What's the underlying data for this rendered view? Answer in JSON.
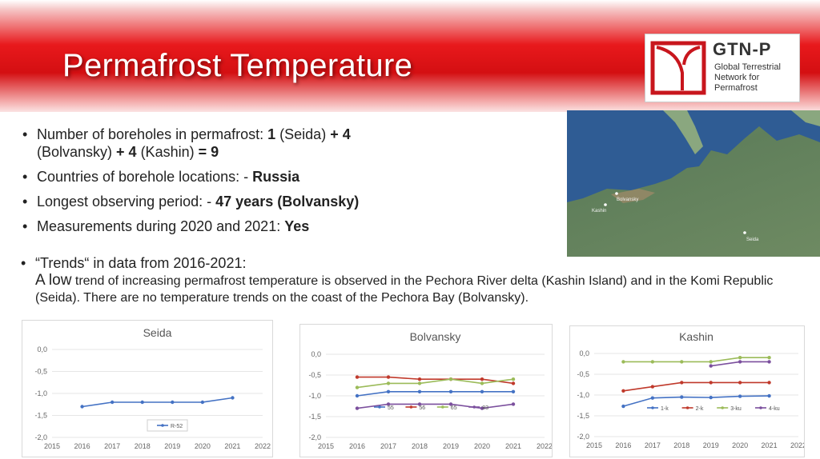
{
  "slide": {
    "title": "Permafrost Temperature",
    "logo": {
      "name": "GTN-P",
      "subtitle_lines": [
        "Global Terrestrial",
        "Network for",
        "Permafrost"
      ]
    },
    "map_labels": [
      "Bolvansky",
      "Kashin",
      "Seida"
    ],
    "bullets": [
      [
        {
          "t": "Number of boreholes in permafrost:  ",
          "b": false
        },
        {
          "t": "1",
          "b": true
        },
        {
          "t": " (Seida) ",
          "b": false
        },
        {
          "t": "+",
          "b": true
        },
        {
          "t": " 4",
          "b": true
        },
        {
          "t": "  (Bolvansky) ",
          "b": false
        },
        {
          "t": "+ 4",
          "b": true
        },
        {
          "t": " (Kashin) ",
          "b": false
        },
        {
          "t": "= 9",
          "b": true
        }
      ],
      [
        {
          "t": "Countries of borehole locations: -  ",
          "b": false
        },
        {
          "t": "Russia",
          "b": true
        }
      ],
      [
        {
          "t": "Longest observing period: - ",
          "b": false
        },
        {
          "t": "47 years (Bolvansky)",
          "b": true
        }
      ],
      [
        {
          "t": "Measurements during 2020 and 2021:  ",
          "b": false
        },
        {
          "t": "Yes",
          "b": true
        }
      ]
    ],
    "trend_heading": "“Trends“ in data from 2016-2021:",
    "trend_lead": "A low",
    "trend_body": " trend of increasing permafrost temperature is observed in the Pechora River delta (Kashin Island) and in the Komi Republic (Seida). There are no temperature trends on the coast of the Pechora Bay (Bolvansky)."
  },
  "chart_data": [
    {
      "type": "line",
      "title": "Seida",
      "x": [
        2016,
        2017,
        2018,
        2019,
        2020,
        2021
      ],
      "xlim": [
        2015,
        2022
      ],
      "xticks": [
        "2015",
        "2016",
        "2017",
        "2018",
        "2019",
        "2020",
        "2021",
        "2022"
      ],
      "ylim": [
        -2.0,
        0.0
      ],
      "yticks": [
        "0,0",
        "-0,5",
        "-1,0",
        "-1,5",
        "-2,0"
      ],
      "series": [
        {
          "name": "R-52",
          "color": "#4472c4",
          "values": [
            -1.3,
            -1.2,
            -1.2,
            -1.2,
            -1.2,
            -1.1
          ]
        }
      ],
      "legend": "bottom-right"
    },
    {
      "type": "line",
      "title": "Bolvansky",
      "x": [
        2016,
        2017,
        2018,
        2019,
        2020,
        2021
      ],
      "xlim": [
        2015,
        2022
      ],
      "xticks": [
        "2015",
        "2016",
        "2017",
        "2018",
        "2019",
        "2020",
        "2021",
        "2022"
      ],
      "ylim": [
        -2.0,
        0.0
      ],
      "yticks": [
        "0,0",
        "-0,5",
        "-1,0",
        "-1,5",
        "-2,0"
      ],
      "series": [
        {
          "name": "55",
          "color": "#4472c4",
          "values": [
            -1.0,
            -0.9,
            -0.9,
            -0.9,
            -0.9,
            -0.9
          ]
        },
        {
          "name": "56",
          "color": "#c0392b",
          "values": [
            -0.55,
            -0.55,
            -0.6,
            -0.6,
            -0.6,
            -0.7
          ]
        },
        {
          "name": "65",
          "color": "#9bbb59",
          "values": [
            -0.8,
            -0.7,
            -0.7,
            -0.6,
            -0.7,
            -0.6
          ]
        },
        {
          "name": "83",
          "color": "#7b4f9d",
          "values": [
            -1.3,
            -1.2,
            -1.2,
            -1.2,
            -1.3,
            -1.2
          ]
        }
      ],
      "legend": "bottom"
    },
    {
      "type": "line",
      "title": "Kashin",
      "x": [
        2016,
        2017,
        2018,
        2019,
        2020,
        2021
      ],
      "xlim": [
        2015,
        2022
      ],
      "xticks": [
        "2015",
        "2016",
        "2017",
        "2018",
        "2019",
        "2020",
        "2021",
        "2022"
      ],
      "ylim": [
        -2.0,
        0.0
      ],
      "yticks": [
        "0,0",
        "-0,5",
        "-1,0",
        "-1,5",
        "-2,0"
      ],
      "series": [
        {
          "name": "1-k",
          "color": "#4472c4",
          "values": [
            -1.27,
            -1.07,
            -1.05,
            -1.06,
            -1.03,
            -1.02
          ]
        },
        {
          "name": "2-k",
          "color": "#c0392b",
          "values": [
            -0.9,
            -0.8,
            -0.7,
            -0.7,
            -0.7,
            -0.7
          ]
        },
        {
          "name": "3-ku",
          "color": "#9bbb59",
          "values": [
            -0.2,
            -0.2,
            -0.2,
            -0.2,
            -0.1,
            -0.1
          ]
        },
        {
          "name": "4-ku",
          "color": "#7b4f9d",
          "values": [
            null,
            null,
            null,
            -0.3,
            -0.2,
            -0.2
          ]
        }
      ],
      "legend": "bottom"
    }
  ]
}
